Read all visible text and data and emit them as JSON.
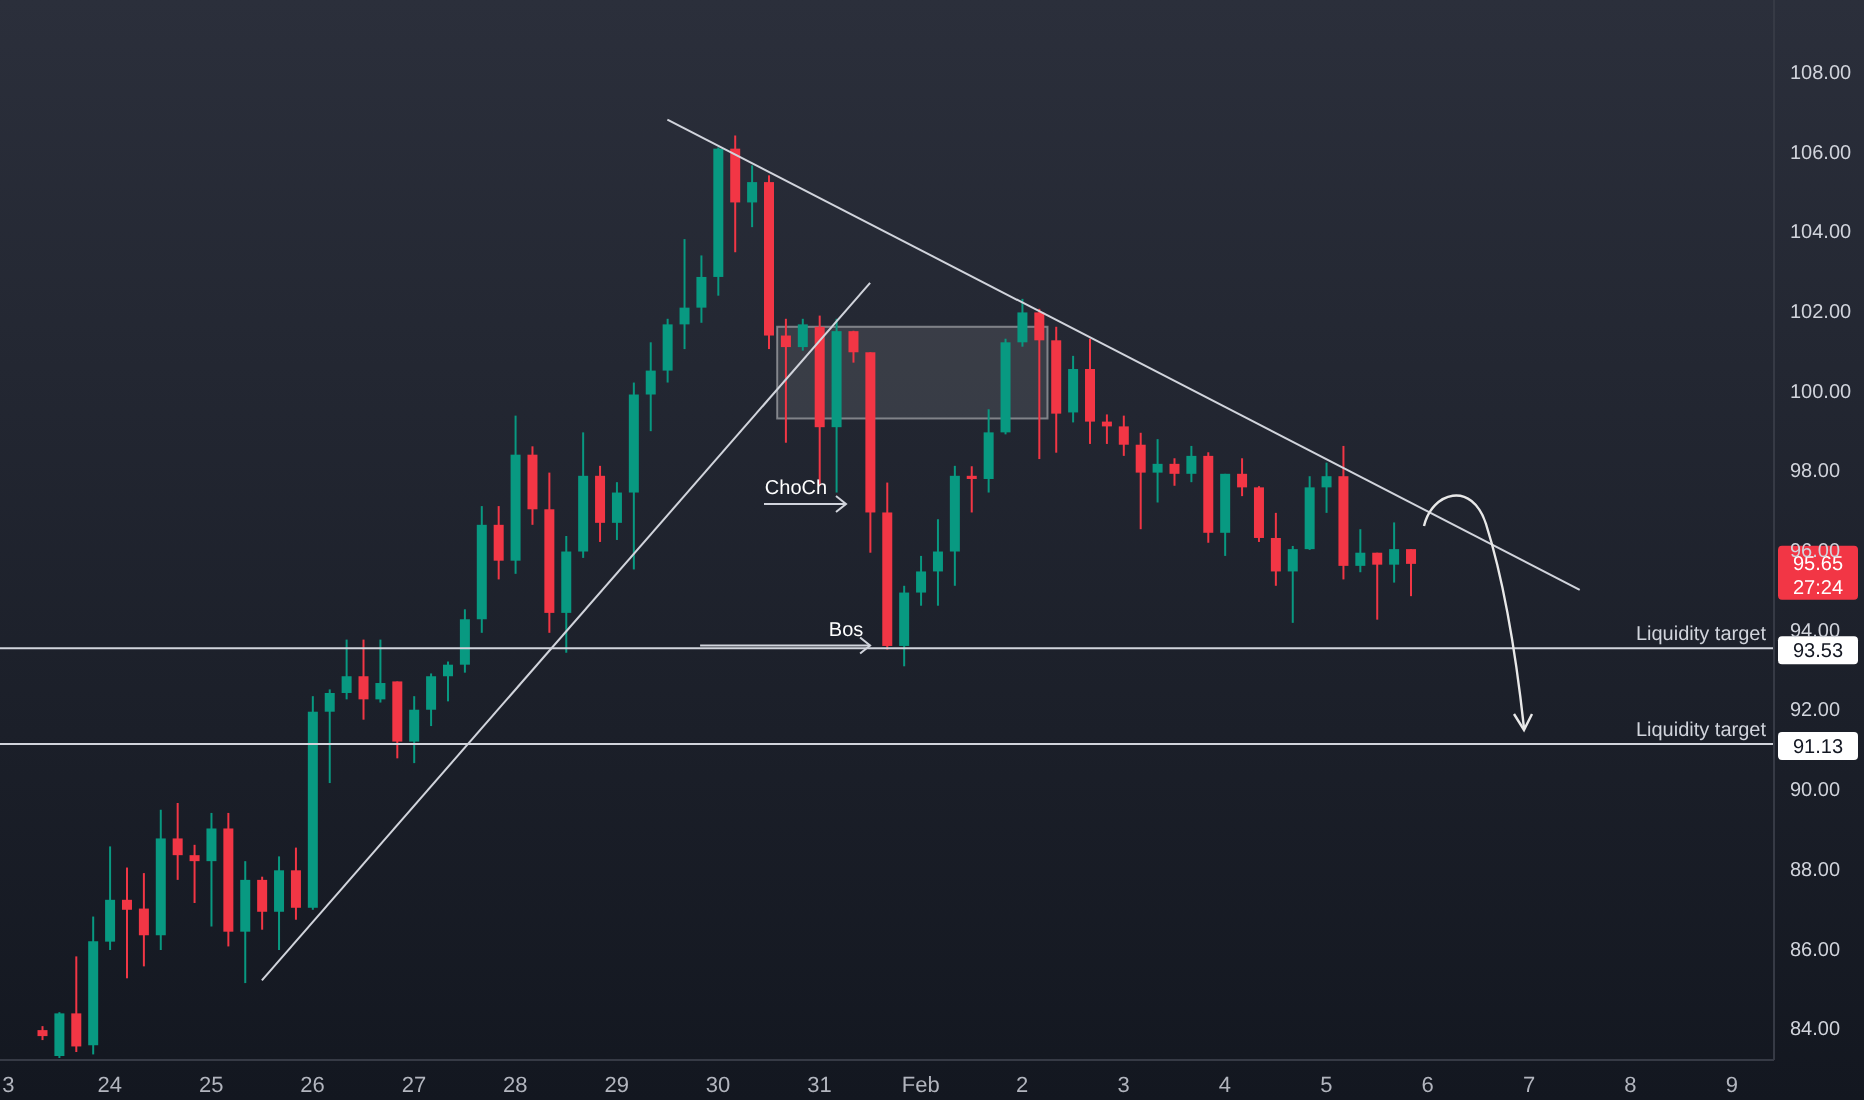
{
  "chart_data": {
    "type": "candlestick",
    "categories": [
      "3",
      null,
      null,
      null,
      null,
      null,
      "24",
      null,
      null,
      null,
      null,
      null,
      "25",
      null,
      null,
      null,
      null,
      null,
      "26",
      null,
      null,
      null,
      null,
      null,
      "27",
      null,
      null,
      null,
      null,
      null,
      "28",
      null,
      null,
      null,
      null,
      null,
      "29",
      null,
      null,
      null,
      null,
      null,
      "30",
      null,
      null,
      null,
      null,
      null,
      "31",
      null,
      null,
      null,
      null,
      null,
      "Feb",
      null,
      null,
      null,
      null,
      null,
      "2",
      null,
      null,
      null,
      null,
      null,
      "3",
      null,
      null,
      null,
      null,
      null,
      "4",
      null,
      null,
      null,
      null,
      null,
      "5",
      null,
      null,
      null,
      null,
      null,
      "6",
      null,
      null,
      null,
      null,
      null,
      "7",
      null,
      null,
      null,
      null,
      null,
      "8",
      null,
      null,
      null,
      null,
      null,
      "9",
      null,
      null
    ],
    "ohlc": [
      null,
      null,
      [
        83.95,
        84.05,
        83.7,
        83.8
      ],
      [
        83.3,
        84.4,
        83.25,
        84.37
      ],
      [
        84.37,
        85.8,
        83.4,
        83.54
      ],
      [
        83.57,
        86.8,
        83.34,
        86.18
      ],
      [
        86.17,
        88.56,
        85.96,
        87.22
      ],
      [
        87.22,
        88.03,
        85.25,
        86.97
      ],
      [
        87.0,
        87.89,
        85.55,
        86.33
      ],
      [
        86.33,
        89.48,
        85.96,
        88.76
      ],
      [
        88.76,
        89.65,
        87.72,
        88.34
      ],
      [
        88.34,
        88.6,
        87.14,
        88.19
      ],
      [
        88.19,
        89.4,
        86.55,
        89.01
      ],
      [
        89.01,
        89.4,
        86.05,
        86.42
      ],
      [
        86.42,
        88.19,
        85.13,
        87.72
      ],
      [
        87.72,
        87.8,
        86.47,
        86.92
      ],
      [
        86.92,
        88.31,
        85.96,
        87.96
      ],
      [
        87.96,
        88.53,
        86.72,
        87.02
      ],
      [
        87.02,
        92.33,
        86.97,
        91.94
      ],
      [
        91.94,
        92.5,
        90.15,
        92.41
      ],
      [
        92.41,
        93.75,
        92.25,
        92.83
      ],
      [
        92.83,
        93.75,
        91.74,
        92.25
      ],
      [
        92.25,
        93.75,
        92.17,
        92.66
      ],
      [
        92.7,
        92.7,
        90.77,
        91.19
      ],
      [
        91.19,
        92.33,
        90.65,
        91.99
      ],
      [
        91.99,
        92.9,
        91.58,
        92.83
      ],
      [
        92.83,
        93.2,
        92.2,
        93.12
      ],
      [
        93.12,
        94.51,
        92.92,
        94.26
      ],
      [
        94.26,
        97.1,
        93.92,
        96.63
      ],
      [
        96.63,
        97.1,
        95.26,
        95.73
      ],
      [
        95.73,
        99.37,
        95.4,
        98.39
      ],
      [
        98.39,
        98.6,
        96.63,
        97.02
      ],
      [
        97.02,
        97.94,
        93.92,
        94.42
      ],
      [
        94.42,
        96.35,
        93.42,
        95.96
      ],
      [
        95.96,
        98.95,
        95.8,
        97.86
      ],
      [
        97.86,
        98.11,
        96.2,
        96.68
      ],
      [
        96.68,
        97.7,
        96.25,
        97.44
      ],
      [
        97.44,
        100.2,
        95.51,
        99.9
      ],
      [
        99.9,
        101.21,
        98.98,
        100.5
      ],
      [
        100.5,
        101.8,
        100.2,
        101.66
      ],
      [
        101.66,
        103.8,
        101.04,
        102.08
      ],
      [
        102.08,
        103.39,
        101.7,
        102.85
      ],
      [
        102.85,
        106.1,
        102.38,
        106.07
      ],
      [
        106.07,
        106.4,
        103.47,
        104.72
      ],
      [
        104.72,
        105.65,
        104.1,
        105.23
      ],
      [
        105.23,
        105.4,
        101.04,
        101.38
      ],
      [
        101.38,
        101.8,
        98.69,
        101.09
      ],
      [
        101.09,
        101.8,
        101.0,
        101.66
      ],
      [
        101.6,
        101.88,
        97.61,
        99.08
      ],
      [
        99.08,
        101.8,
        97.44,
        101.49
      ],
      [
        101.49,
        101.5,
        100.7,
        100.96
      ],
      [
        100.96,
        100.96,
        95.93,
        96.94
      ],
      [
        96.94,
        97.69,
        93.5,
        93.59
      ],
      [
        93.59,
        95.1,
        93.08,
        94.93
      ],
      [
        94.93,
        95.85,
        94.6,
        95.46
      ],
      [
        95.46,
        96.77,
        94.6,
        95.96
      ],
      [
        95.96,
        98.11,
        95.1,
        97.86
      ],
      [
        97.86,
        98.1,
        96.94,
        97.78
      ],
      [
        97.78,
        99.53,
        97.44,
        98.95
      ],
      [
        98.95,
        101.3,
        98.9,
        101.21
      ],
      [
        101.21,
        102.3,
        101.1,
        101.96
      ],
      [
        101.96,
        102.05,
        98.28,
        101.26
      ],
      [
        101.26,
        101.6,
        98.44,
        99.42
      ],
      [
        99.45,
        100.87,
        99.2,
        100.54
      ],
      [
        100.54,
        101.3,
        98.66,
        99.22
      ],
      [
        99.22,
        99.4,
        98.66,
        99.1
      ],
      [
        99.1,
        99.37,
        98.36,
        98.64
      ],
      [
        98.64,
        98.94,
        96.52,
        97.94
      ],
      [
        97.94,
        98.78,
        97.19,
        98.16
      ],
      [
        98.16,
        98.3,
        97.61,
        97.91
      ],
      [
        97.91,
        98.61,
        97.7,
        98.36
      ],
      [
        98.36,
        98.45,
        96.18,
        96.43
      ],
      [
        96.43,
        97.91,
        95.85,
        97.91
      ],
      [
        97.91,
        98.3,
        97.35,
        97.57
      ],
      [
        97.57,
        97.6,
        96.2,
        96.3
      ],
      [
        96.3,
        96.93,
        95.1,
        95.46
      ],
      [
        95.46,
        96.1,
        94.17,
        96.02
      ],
      [
        96.02,
        97.85,
        96.0,
        97.57
      ],
      [
        97.57,
        98.19,
        96.93,
        97.85
      ],
      [
        97.85,
        98.61,
        95.26,
        95.6
      ],
      [
        95.6,
        96.52,
        95.44,
        95.93
      ],
      [
        95.93,
        95.93,
        94.25,
        95.63
      ],
      [
        95.63,
        96.69,
        95.18,
        96.02
      ],
      [
        96.02,
        96.02,
        94.84,
        95.65
      ],
      null,
      null,
      null,
      null,
      null,
      null,
      null,
      null,
      null,
      null,
      null,
      null,
      null,
      null,
      null,
      null,
      null,
      null,
      null,
      null,
      null
    ],
    "colors": [
      null,
      null,
      "#f23645",
      "#089981",
      "#f23645",
      "#089981",
      "#089981",
      "#f23645",
      "#f23645",
      "#089981",
      "#f23645",
      "#f23645",
      "#089981",
      "#f23645",
      "#089981",
      "#f23645",
      "#089981",
      "#f23645",
      "#089981",
      "#089981",
      "#089981",
      "#f23645",
      "#089981",
      "#f23645",
      "#089981",
      "#089981",
      "#089981",
      "#089981",
      "#089981",
      "#f23645",
      "#089981",
      "#f23645",
      "#f23645",
      "#089981",
      "#089981",
      "#f23645",
      "#089981",
      "#089981",
      "#089981",
      "#089981",
      "#089981",
      "#089981",
      "#089981",
      "#f23645",
      "#089981",
      "#f23645",
      "#f23645",
      "#089981",
      "#f23645",
      "#089981",
      "#f23645",
      "#f23645",
      "#f23645",
      "#089981",
      "#089981",
      "#089981",
      "#089981",
      "#f23645",
      "#089981",
      "#089981",
      "#089981",
      "#f23645",
      "#f23645",
      "#089981",
      "#f23645",
      "#f23645",
      "#f23645",
      "#f23645",
      "#089981",
      "#f23645",
      "#089981",
      "#f23645",
      "#089981",
      "#f23645",
      "#f23645",
      "#f23645",
      "#089981",
      "#089981",
      "#089981",
      "#f23645",
      "#089981",
      "#f23645",
      "#089981",
      "#f23645",
      null,
      null,
      null,
      null,
      null,
      null,
      null,
      null,
      null,
      null,
      null,
      null,
      null,
      null,
      null,
      null,
      null,
      null,
      null,
      null,
      null
    ],
    "series": [
      {
        "type": "line",
        "color": "#d1d4dc",
        "values": [
          null,
          null,
          null,
          null,
          null,
          null,
          null,
          null,
          null,
          null,
          null,
          null,
          null,
          null,
          null,
          null,
          null,
          null,
          null,
          null,
          null,
          null,
          null,
          null,
          null,
          null,
          null,
          null,
          null,
          null,
          null,
          null,
          null,
          null,
          null,
          null,
          null,
          null,
          null,
          106.8,
          null,
          null,
          null,
          null,
          null,
          null,
          null,
          null,
          null,
          null,
          null,
          null,
          null,
          null,
          null,
          null,
          null,
          null,
          null,
          null,
          null,
          null,
          null,
          null,
          null,
          null,
          null,
          null,
          null,
          null,
          null,
          null,
          null,
          null,
          null,
          null,
          null,
          null,
          null,
          null,
          null,
          null,
          null,
          null,
          null,
          null,
          null,
          null,
          null,
          null,
          null,
          null,
          null,
          95.0,
          null,
          null,
          null,
          null,
          null,
          null,
          null,
          null,
          null,
          null,
          null
        ]
      },
      {
        "type": "line",
        "color": "#d1d4dc",
        "values": [
          null,
          null,
          null,
          null,
          null,
          null,
          null,
          null,
          null,
          null,
          null,
          null,
          null,
          null,
          null,
          85.2,
          null,
          null,
          null,
          null,
          null,
          null,
          null,
          null,
          null,
          null,
          null,
          null,
          null,
          null,
          null,
          null,
          null,
          null,
          null,
          null,
          null,
          null,
          null,
          null,
          null,
          null,
          null,
          null,
          null,
          null,
          null,
          null,
          null,
          null,
          null,
          102.7,
          null,
          null,
          null,
          null,
          null,
          null,
          null,
          null,
          null,
          null,
          null,
          null,
          null,
          null,
          null,
          null,
          null,
          null,
          null,
          null,
          null,
          null,
          null,
          null,
          null,
          null,
          null,
          null,
          null,
          null,
          null,
          null,
          null,
          null,
          null,
          null,
          null,
          null,
          null,
          null,
          null,
          null,
          null,
          null,
          null,
          null,
          null,
          null,
          null,
          null,
          null,
          null,
          null
        ]
      }
    ],
    "ylim": [
      83.2,
      109.8
    ],
    "yticks": [
      {
        "value": 84,
        "label": "84.00"
      },
      {
        "value": 86,
        "label": "86.00"
      },
      {
        "value": 88,
        "label": "88.00"
      },
      {
        "value": 90,
        "label": "90.00"
      },
      {
        "value": 92,
        "label": "92.00"
      },
      {
        "value": 94,
        "label": "94.00"
      },
      {
        "value": 96,
        "label": "96.00"
      },
      {
        "value": 98,
        "label": "98.00"
      },
      {
        "value": 100,
        "label": "100.00"
      },
      {
        "value": 102,
        "label": "102.00"
      },
      {
        "value": 104,
        "label": "104.00"
      },
      {
        "value": 106,
        "label": "106.00"
      },
      {
        "value": 108,
        "label": "108.00"
      }
    ],
    "ref_lines": [
      {
        "axis": "y",
        "value": 93.53,
        "label": "Liquidity target",
        "color": "#d1d4dc"
      },
      {
        "axis": "y",
        "value": 91.13,
        "label": "Liquidity target",
        "color": "#d1d4dc"
      }
    ],
    "bands": [
      {
        "axis": "y",
        "from": 99.3,
        "to": 101.6,
        "color": "#ffffff"
      }
    ],
    "annotations": [
      "ChoCh",
      {
        "text": "Bos",
        "y": 93.6
      },
      "95.65",
      "27:24",
      {
        "text": "93.53",
        "y": 93.53
      },
      {
        "text": "91.13",
        "y": 91.13
      }
    ]
  }
}
